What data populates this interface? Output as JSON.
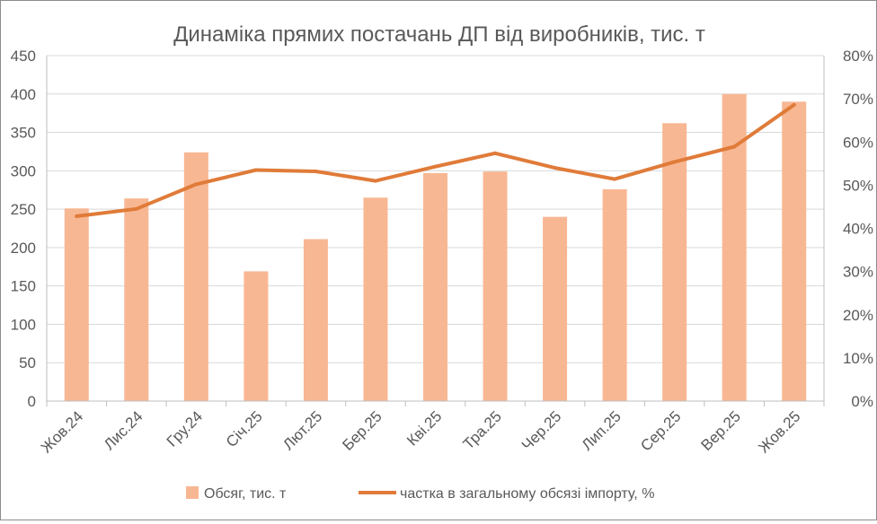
{
  "chart_data": {
    "type": "bar",
    "title": "Динаміка прямих постачань ДП від виробників, тис. т",
    "categories": [
      "Жов.24",
      "Лис.24",
      "Гру.24",
      "Січ.25",
      "Лют.25",
      "Бер.25",
      "Кві.25",
      "Тра.25",
      "Чер.25",
      "Лип.25",
      "Сер.25",
      "Вер.25",
      "Жов.25"
    ],
    "series": [
      {
        "name": "Обсяг, тис. т",
        "type": "bar",
        "axis": "left",
        "color": "#f8b793",
        "values": [
          251,
          264,
          324,
          169,
          211,
          265,
          297,
          299,
          240,
          276,
          362,
          400,
          390
        ]
      },
      {
        "name": "частка в загальному обсязі імпорту, %",
        "type": "line",
        "axis": "right",
        "color": "#e07b39",
        "values": [
          42.8,
          44.5,
          50.2,
          53.5,
          53.2,
          51,
          54.3,
          57.4,
          54,
          51.4,
          55.4,
          58.9,
          68.6
        ]
      }
    ],
    "y_left": {
      "min": 0,
      "max": 450,
      "step": 50,
      "ticks": [
        "0",
        "50",
        "100",
        "150",
        "200",
        "250",
        "300",
        "350",
        "400",
        "450"
      ]
    },
    "y_right": {
      "min": 0,
      "max": 80,
      "step": 10,
      "ticks": [
        "0%",
        "10%",
        "20%",
        "30%",
        "40%",
        "50%",
        "60%",
        "70%",
        "80%"
      ]
    },
    "grid": true,
    "legend": "bottom"
  }
}
